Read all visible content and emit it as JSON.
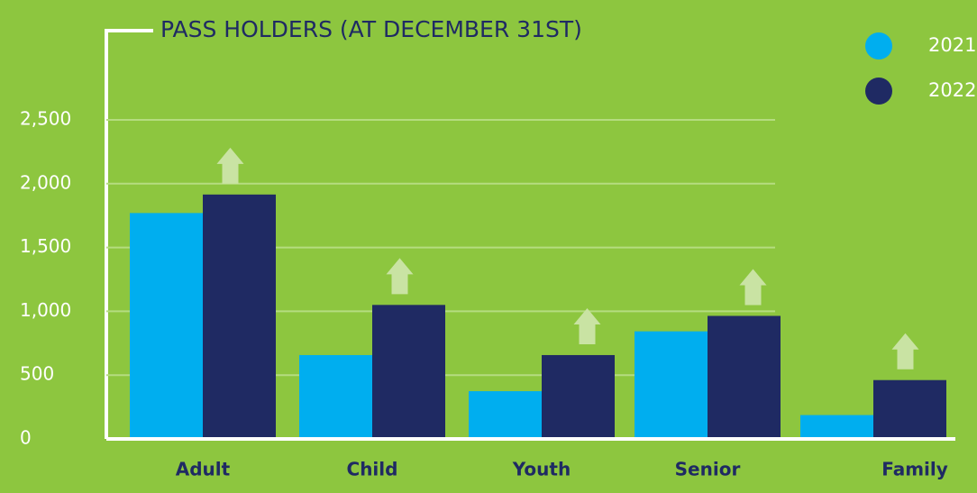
{
  "chart_data": {
    "type": "bar",
    "title": "PASS HOLDERS (AT DECEMBER 31ST)",
    "categories": [
      "Adult",
      "Child",
      "Youth",
      "Senior",
      "Family"
    ],
    "series": [
      {
        "name": "2021",
        "color": "#00aeef",
        "values": [
          1770,
          657,
          374,
          843,
          187
        ]
      },
      {
        "name": "2022",
        "color": "#1f2a63",
        "values": [
          1915,
          1050,
          657,
          964,
          461
        ]
      }
    ],
    "ylim": [
      0,
      2500
    ],
    "yticks": [
      0,
      500,
      {
        "value": 1000,
        "label": "1,000"
      },
      {
        "value": 1500,
        "label": "1,500"
      },
      {
        "value": 2000,
        "label": "2,000"
      },
      {
        "value": 2500,
        "label": "2,500"
      }
    ],
    "grid": true
  }
}
